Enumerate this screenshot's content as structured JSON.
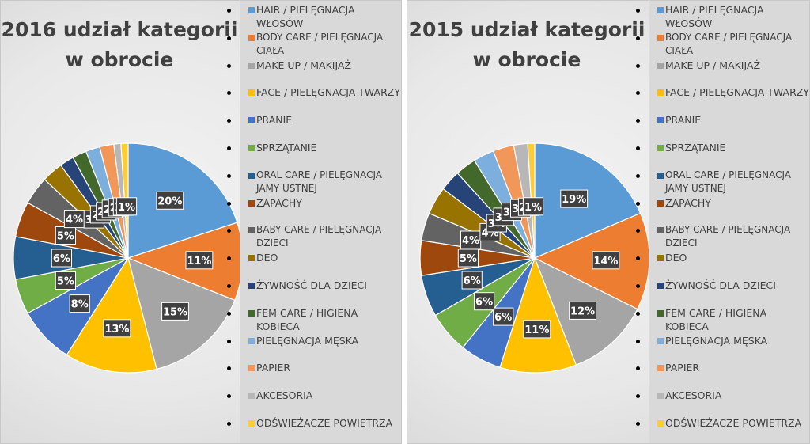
{
  "colors": {
    "HAIR": "#5b9bd5",
    "BODY": "#ed7d31",
    "MAKEUP": "#a5a5a5",
    "FACE": "#ffc000",
    "PRANIE": "#4472c4",
    "SPRZATANIE": "#70ad47",
    "ORAL": "#255e91",
    "ZAPACHY": "#9e480e",
    "BABY": "#636363",
    "DEO": "#997300",
    "ZYWNOSC": "#264478",
    "FEM": "#43682b",
    "MESKA": "#7cafdd",
    "PAPIER": "#f1975a",
    "AKCESORIA": "#b7b7b7",
    "ODSWIEZACZE": "#ffcd33"
  },
  "chart_data": [
    {
      "type": "pie",
      "title": "2016 udział kategorii w obrocie",
      "categories": [
        "HAIR / PIELĘGNACJA WŁOSÓW",
        "BODY CARE / PIELĘGNACJA CIAŁA",
        "MAKE UP / MAKIJAŻ",
        "FACE / PIELĘGNACJA TWARZY",
        "PRANIE",
        "SPRZĄTANIE",
        "ORAL CARE / PIELĘGNACJA JAMY USTNEJ",
        "ZAPACHY",
        "BABY CARE / PIELĘGNACJA DZIECI",
        "DEO",
        "ŻYWNOŚĆ DLA DZIECI",
        "FEM CARE / HIGIENA KOBIECA",
        "PIELĘGNACJA MĘSKA",
        "PAPIER",
        "AKCESORIA",
        "ODŚWIEŻACZE POWIETRZA"
      ],
      "values": [
        20,
        11,
        15,
        13,
        8,
        5,
        6,
        5,
        4,
        3,
        2,
        2,
        2,
        2,
        1,
        1
      ],
      "labels": [
        "20%",
        "11%",
        "15%",
        "13%",
        "8%",
        "5%",
        "6%",
        "5%",
        "4%",
        "3%",
        "2%",
        "2%",
        "2%",
        "2%",
        "1%",
        "1%"
      ],
      "legend": "right"
    },
    {
      "type": "pie",
      "title": "2015 udział kategorii w obrocie",
      "categories": [
        "HAIR / PIELĘGNACJA WŁOSÓW",
        "BODY CARE / PIELĘGNACJA CIAŁA",
        "MAKE UP / MAKIJAŻ",
        "FACE / PIELĘGNACJA TWARZY",
        "PRANIE",
        "SPRZĄTANIE",
        "ORAL CARE / PIELĘGNACJA JAMY USTNEJ",
        "ZAPACHY",
        "BABY CARE / PIELĘGNACJA DZIECI",
        "DEO",
        "ŻYWNOŚĆ DLA DZIECI",
        "FEM CARE / HIGIENA KOBIECA",
        "PIELĘGNACJA MĘSKA",
        "PAPIER",
        "AKCESORIA",
        "ODŚWIEŻACZE POWIETRZA"
      ],
      "values": [
        19,
        14,
        12,
        11,
        6,
        6,
        6,
        5,
        4,
        4,
        3,
        3,
        3,
        3,
        2,
        1
      ],
      "labels": [
        "19%",
        "14%",
        "12%",
        "11%",
        "6%",
        "6%",
        "6%",
        "5%",
        "4%",
        "4%",
        "3%",
        "3%",
        "3%",
        "3%",
        "2%",
        "1%"
      ],
      "legend": "right"
    }
  ]
}
